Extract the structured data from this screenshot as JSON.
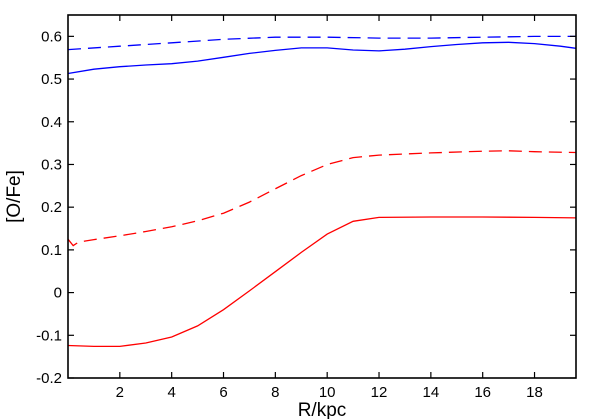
{
  "chart_data": {
    "type": "line",
    "title": "",
    "xlabel": "R/kpc",
    "ylabel": "[O/Fe]",
    "xlim": [
      0,
      19.6
    ],
    "ylim": [
      -0.2,
      0.65
    ],
    "xticks": [
      2,
      4,
      6,
      8,
      10,
      12,
      14,
      16,
      18
    ],
    "yticks": [
      -0.2,
      -0.1,
      0,
      0.1,
      0.2,
      0.3,
      0.4,
      0.5,
      0.6
    ],
    "ytick_labels": [
      "-0.2",
      "-0.1",
      "0",
      "0.1",
      "0.2",
      "0.3",
      "0.4",
      "0.5",
      "0.6"
    ],
    "grid": false,
    "series": [
      {
        "color": "#0000ff",
        "style": "dashed",
        "x": [
          0,
          2,
          4,
          6,
          8,
          10,
          12,
          14,
          16,
          18,
          19.6
        ],
        "y": [
          0.569,
          0.577,
          0.585,
          0.593,
          0.598,
          0.598,
          0.596,
          0.596,
          0.598,
          0.6,
          0.6
        ]
      },
      {
        "color": "#0000ff",
        "style": "solid",
        "x": [
          0,
          1,
          2,
          3,
          4,
          5,
          6,
          7,
          8,
          9,
          10,
          11,
          12,
          13,
          14,
          15,
          16,
          17,
          18,
          19,
          19.6
        ],
        "y": [
          0.513,
          0.523,
          0.529,
          0.533,
          0.536,
          0.542,
          0.551,
          0.56,
          0.567,
          0.573,
          0.573,
          0.568,
          0.566,
          0.57,
          0.576,
          0.581,
          0.585,
          0.586,
          0.583,
          0.577,
          0.572
        ]
      },
      {
        "color": "#ff0000",
        "style": "dashed",
        "x": [
          0,
          0.2,
          0.4,
          1,
          2,
          3,
          4,
          5,
          6,
          7,
          8,
          9,
          10,
          11,
          12,
          14,
          16,
          17,
          18,
          19.6
        ],
        "y": [
          0.125,
          0.11,
          0.118,
          0.124,
          0.133,
          0.143,
          0.154,
          0.168,
          0.186,
          0.212,
          0.243,
          0.274,
          0.3,
          0.316,
          0.322,
          0.327,
          0.331,
          0.332,
          0.33,
          0.328
        ]
      },
      {
        "color": "#ff0000",
        "style": "solid",
        "x": [
          0,
          1,
          2,
          3,
          4,
          5,
          6,
          7,
          8,
          9,
          10,
          11,
          12,
          14,
          16,
          18,
          19.6
        ],
        "y": [
          -0.124,
          -0.126,
          -0.126,
          -0.118,
          -0.104,
          -0.078,
          -0.04,
          0.004,
          0.049,
          0.094,
          0.137,
          0.167,
          0.176,
          0.177,
          0.177,
          0.176,
          0.175
        ]
      }
    ]
  }
}
